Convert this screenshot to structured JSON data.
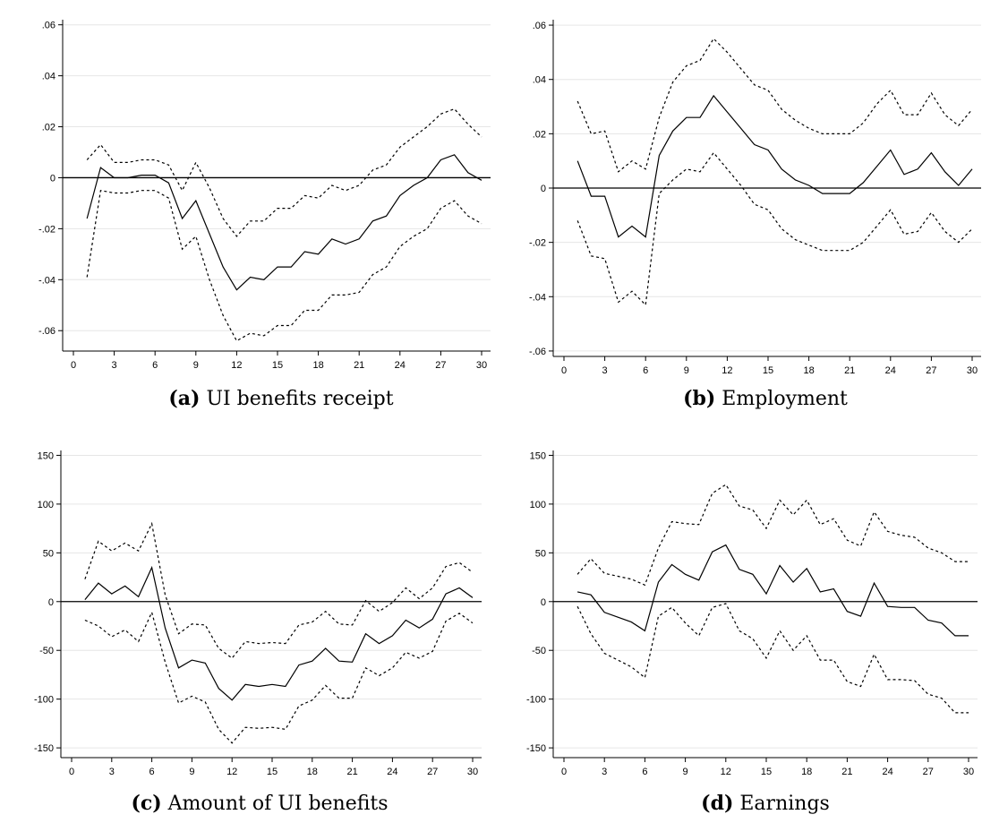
{
  "chart_data": [
    {
      "type": "line",
      "caption_tag": "(a)",
      "caption_text": "UI benefits receipt",
      "x": [
        1,
        2,
        3,
        4,
        5,
        6,
        7,
        8,
        9,
        10,
        11,
        12,
        13,
        14,
        15,
        16,
        17,
        18,
        19,
        20,
        21,
        22,
        23,
        24,
        25,
        26,
        27,
        28,
        29,
        30
      ],
      "xticks": [
        0,
        3,
        6,
        9,
        12,
        15,
        18,
        21,
        24,
        27,
        30
      ],
      "xlim": [
        0,
        30
      ],
      "yticks": [
        0.06,
        0.04,
        0.02,
        0,
        -0.02,
        -0.04,
        -0.06
      ],
      "yticklabels": [
        ".06",
        ".04",
        ".02",
        "0",
        "-.02",
        "-.04",
        "-.06"
      ],
      "ylim": [
        -0.068,
        0.062
      ],
      "grid": true,
      "series": [
        {
          "style": "solid",
          "values": [
            -0.016,
            0.004,
            0.0,
            0.0,
            0.001,
            0.001,
            -0.002,
            -0.016,
            -0.009,
            -0.022,
            -0.035,
            -0.044,
            -0.039,
            -0.04,
            -0.035,
            -0.035,
            -0.029,
            -0.03,
            -0.024,
            -0.026,
            -0.024,
            -0.017,
            -0.015,
            -0.007,
            -0.003,
            0.0,
            0.007,
            0.009,
            0.002,
            -0.001
          ]
        },
        {
          "style": "dashed",
          "values": [
            0.007,
            0.013,
            0.006,
            0.006,
            0.007,
            0.007,
            0.005,
            -0.005,
            0.006,
            -0.004,
            -0.016,
            -0.023,
            -0.017,
            -0.017,
            -0.012,
            -0.012,
            -0.007,
            -0.008,
            -0.003,
            -0.005,
            -0.003,
            0.003,
            0.005,
            0.012,
            0.016,
            0.02,
            0.025,
            0.027,
            0.021,
            0.016
          ]
        },
        {
          "style": "dashed",
          "values": [
            -0.039,
            -0.005,
            -0.006,
            -0.006,
            -0.005,
            -0.005,
            -0.008,
            -0.028,
            -0.023,
            -0.04,
            -0.054,
            -0.064,
            -0.061,
            -0.062,
            -0.058,
            -0.058,
            -0.052,
            -0.052,
            -0.046,
            -0.046,
            -0.045,
            -0.038,
            -0.035,
            -0.027,
            -0.023,
            -0.02,
            -0.012,
            -0.009,
            -0.015,
            -0.018
          ]
        }
      ]
    },
    {
      "type": "line",
      "caption_tag": "(b)",
      "caption_text": "Employment",
      "x": [
        1,
        2,
        3,
        4,
        5,
        6,
        7,
        8,
        9,
        10,
        11,
        12,
        13,
        14,
        15,
        16,
        17,
        18,
        19,
        20,
        21,
        22,
        23,
        24,
        25,
        26,
        27,
        28,
        29,
        30
      ],
      "xticks": [
        0,
        3,
        6,
        9,
        12,
        15,
        18,
        21,
        24,
        27,
        30
      ],
      "xlim": [
        0,
        30
      ],
      "yticks": [
        0.06,
        0.04,
        0.02,
        0,
        -0.02,
        -0.04,
        -0.06
      ],
      "yticklabels": [
        ".06",
        ".04",
        ".02",
        "0",
        "-.02",
        "-.04",
        "-.06"
      ],
      "ylim": [
        -0.062,
        0.062
      ],
      "grid": true,
      "series": [
        {
          "style": "solid",
          "values": [
            0.01,
            -0.003,
            -0.003,
            -0.018,
            -0.014,
            -0.018,
            0.012,
            0.021,
            0.026,
            0.026,
            0.034,
            0.028,
            0.022,
            0.016,
            0.014,
            0.007,
            0.003,
            0.001,
            -0.002,
            -0.002,
            -0.002,
            0.002,
            0.008,
            0.014,
            0.005,
            0.007,
            0.013,
            0.006,
            0.001,
            0.007
          ]
        },
        {
          "style": "dashed",
          "values": [
            0.032,
            0.02,
            0.021,
            0.006,
            0.01,
            0.007,
            0.026,
            0.039,
            0.045,
            0.047,
            0.055,
            0.05,
            0.044,
            0.038,
            0.036,
            0.029,
            0.025,
            0.022,
            0.02,
            0.02,
            0.02,
            0.024,
            0.031,
            0.036,
            0.027,
            0.027,
            0.035,
            0.027,
            0.023,
            0.029
          ]
        },
        {
          "style": "dashed",
          "values": [
            -0.012,
            -0.025,
            -0.026,
            -0.042,
            -0.038,
            -0.043,
            -0.002,
            0.003,
            0.007,
            0.006,
            0.013,
            0.007,
            0.001,
            -0.006,
            -0.008,
            -0.015,
            -0.019,
            -0.021,
            -0.023,
            -0.023,
            -0.023,
            -0.02,
            -0.014,
            -0.008,
            -0.017,
            -0.016,
            -0.009,
            -0.016,
            -0.02,
            -0.015
          ]
        }
      ]
    },
    {
      "type": "line",
      "caption_tag": "(c)",
      "caption_text": "Amount of UI benefits",
      "x": [
        1,
        2,
        3,
        4,
        5,
        6,
        7,
        8,
        9,
        10,
        11,
        12,
        13,
        14,
        15,
        16,
        17,
        18,
        19,
        20,
        21,
        22,
        23,
        24,
        25,
        26,
        27,
        28,
        29,
        30
      ],
      "xticks": [
        0,
        3,
        6,
        9,
        12,
        15,
        18,
        21,
        24,
        27,
        30
      ],
      "xlim": [
        0,
        30
      ],
      "yticks": [
        150,
        100,
        50,
        0,
        -50,
        -100,
        -150
      ],
      "yticklabels": [
        "150",
        "100",
        "50",
        "0",
        "-50",
        "-100",
        "-150"
      ],
      "ylim": [
        -160,
        155
      ],
      "grid": true,
      "series": [
        {
          "style": "solid",
          "values": [
            2,
            19,
            8,
            16,
            5,
            35,
            -27,
            -68,
            -60,
            -63,
            -89,
            -101,
            -85,
            -87,
            -85,
            -87,
            -65,
            -61,
            -48,
            -61,
            -62,
            -33,
            -43,
            -35,
            -19,
            -27,
            -18,
            8,
            14,
            4
          ]
        },
        {
          "style": "dashed",
          "values": [
            23,
            62,
            52,
            60,
            52,
            80,
            7,
            -33,
            -23,
            -24,
            -48,
            -58,
            -41,
            -43,
            -42,
            -43,
            -24,
            -21,
            -10,
            -23,
            -24,
            1,
            -10,
            -1,
            14,
            3,
            14,
            36,
            40,
            30
          ]
        },
        {
          "style": "dashed",
          "values": [
            -19,
            -25,
            -36,
            -29,
            -41,
            -11,
            -62,
            -104,
            -97,
            -103,
            -131,
            -145,
            -129,
            -130,
            -129,
            -131,
            -107,
            -101,
            -86,
            -99,
            -99,
            -68,
            -76,
            -68,
            -52,
            -58,
            -51,
            -20,
            -12,
            -22
          ]
        }
      ]
    },
    {
      "type": "line",
      "caption_tag": "(d)",
      "caption_text": "Earnings",
      "x": [
        1,
        2,
        3,
        4,
        5,
        6,
        7,
        8,
        9,
        10,
        11,
        12,
        13,
        14,
        15,
        16,
        17,
        18,
        19,
        20,
        21,
        22,
        23,
        24,
        25,
        26,
        27,
        28,
        29,
        30
      ],
      "xticks": [
        0,
        3,
        6,
        9,
        12,
        15,
        18,
        21,
        24,
        27,
        30
      ],
      "xlim": [
        0,
        30
      ],
      "yticks": [
        150,
        100,
        50,
        0,
        -50,
        -100,
        -150
      ],
      "yticklabels": [
        "150",
        "100",
        "50",
        "0",
        "-50",
        "-100",
        "-150"
      ],
      "ylim": [
        -160,
        155
      ],
      "grid": true,
      "series": [
        {
          "style": "solid",
          "values": [
            10,
            7,
            -11,
            -16,
            -21,
            -30,
            20,
            38,
            28,
            22,
            51,
            58,
            33,
            28,
            8,
            37,
            20,
            34,
            10,
            13,
            -10,
            -15,
            19,
            -5,
            -6,
            -6,
            -19,
            -22,
            -35,
            -35
          ]
        },
        {
          "style": "dashed",
          "values": [
            28,
            44,
            29,
            26,
            23,
            17,
            55,
            82,
            80,
            79,
            111,
            120,
            98,
            94,
            75,
            104,
            89,
            104,
            79,
            85,
            63,
            57,
            92,
            72,
            68,
            66,
            55,
            50,
            41,
            41
          ]
        },
        {
          "style": "dashed",
          "values": [
            -5,
            -33,
            -53,
            -60,
            -67,
            -78,
            -15,
            -6,
            -22,
            -35,
            -6,
            -2,
            -30,
            -38,
            -58,
            -30,
            -50,
            -35,
            -60,
            -60,
            -82,
            -87,
            -54,
            -80,
            -80,
            -81,
            -95,
            -99,
            -114,
            -114
          ]
        }
      ]
    }
  ]
}
